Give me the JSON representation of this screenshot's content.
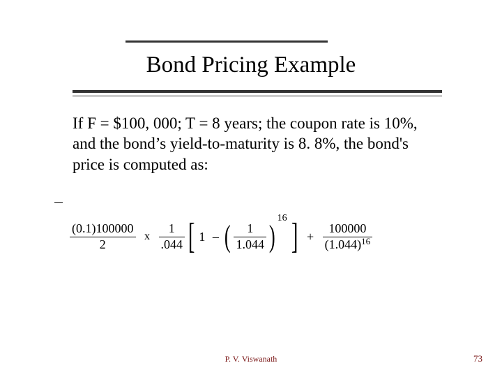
{
  "colors": {
    "rule": "#333333",
    "text": "#000000",
    "footer": "#7a1616",
    "background": "#ffffff"
  },
  "title": "Bond Pricing Example",
  "body": "If F = $100, 000; T = 8 years; the coupon rate is 10%, and the bond’s yield-to-maturity is 8. 8%, the bond's price is computed as:",
  "formula": {
    "term1": {
      "num": "(0.1)100000",
      "den": "2"
    },
    "mult": "x",
    "term2": {
      "num": "1",
      "den": ".044"
    },
    "bracket_one": "1",
    "minus": "–",
    "inner": {
      "num": "1",
      "den": "1.044"
    },
    "inner_exp": "16",
    "plus": "+",
    "term3": {
      "num": "100000",
      "den_base": "(1.044)",
      "den_exp": "16"
    }
  },
  "footer": {
    "author": "P. V. Viswanath",
    "page": "73"
  }
}
